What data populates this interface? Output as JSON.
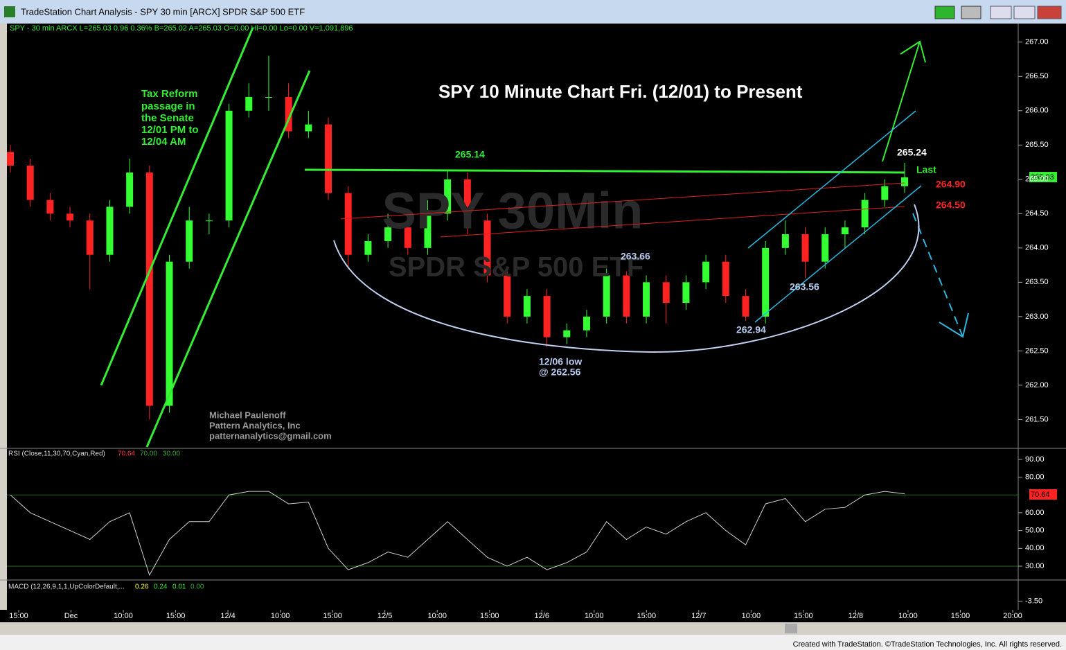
{
  "window_title": "TradeStation Chart Analysis - SPY 30 min [ARCX] SPDR S&P 500 ETF",
  "footer": "Created with TradeStation. ©TradeStation Technologies, Inc. All rights reserved.",
  "chart_data": {
    "type": "candlestick",
    "info_line": "SPY - 30 min  ARCX  L=265.03  0.96  0.36%  B=265.02  A=265.03  O=0.00  Hi=0.00  Lo=0.00  V=1,091,896",
    "title": "SPY 10 Minute Chart Fri. (12/01) to Present",
    "watermark": [
      "SPY 30Min",
      "SPDR S&P 500 ETF"
    ],
    "up_color": "#33ff33",
    "down_color": "#ff2222",
    "candles": {
      "open": [
        265.4,
        265.2,
        264.7,
        264.5,
        264.4,
        263.9,
        264.6,
        265.1,
        261.7,
        263.8,
        264.4,
        264.4,
        266.0,
        266.2,
        266.2,
        265.7,
        265.8,
        264.8,
        263.9,
        264.1,
        264.3,
        264.0,
        264.5,
        265.0,
        264.4,
        263.6,
        263.0,
        263.3,
        262.7,
        262.8,
        263.0,
        263.6,
        263.0,
        263.5,
        263.2,
        263.5,
        263.8,
        263.3,
        263.0,
        264.0,
        264.2,
        263.8,
        264.2,
        264.3,
        264.7,
        264.9
      ],
      "high": [
        265.5,
        265.3,
        264.8,
        264.6,
        264.5,
        264.7,
        265.3,
        265.2,
        263.9,
        264.6,
        264.5,
        266.1,
        266.4,
        266.8,
        266.4,
        266.0,
        265.9,
        264.9,
        264.2,
        264.5,
        264.4,
        264.7,
        265.14,
        265.1,
        264.5,
        263.7,
        263.4,
        263.4,
        262.9,
        263.1,
        263.7,
        263.66,
        263.6,
        263.6,
        263.6,
        263.9,
        263.9,
        263.4,
        264.1,
        264.4,
        264.3,
        264.3,
        264.4,
        264.8,
        265.0,
        265.24
      ],
      "low": [
        265.1,
        264.6,
        264.4,
        264.3,
        263.4,
        263.8,
        264.5,
        261.5,
        261.6,
        263.7,
        264.2,
        264.3,
        265.9,
        266.0,
        265.6,
        265.6,
        264.7,
        263.7,
        263.8,
        264.0,
        263.9,
        263.9,
        264.4,
        264.2,
        263.5,
        262.9,
        262.9,
        262.56,
        262.6,
        262.7,
        262.9,
        262.9,
        262.9,
        262.9,
        263.1,
        263.4,
        263.2,
        262.94,
        262.9,
        263.9,
        263.56,
        263.7,
        264.0,
        264.2,
        264.6,
        264.8
      ],
      "close": [
        265.2,
        264.7,
        264.5,
        264.4,
        263.9,
        264.6,
        265.1,
        261.7,
        263.8,
        264.4,
        264.4,
        266.0,
        266.2,
        266.2,
        265.7,
        265.8,
        264.8,
        263.9,
        264.1,
        264.3,
        264.0,
        264.5,
        265.0,
        264.4,
        263.6,
        263.0,
        263.3,
        262.7,
        262.8,
        263.0,
        263.6,
        263.0,
        263.5,
        263.2,
        263.5,
        263.8,
        263.3,
        263.0,
        264.0,
        264.2,
        263.8,
        264.2,
        264.3,
        264.7,
        264.9,
        265.03
      ]
    },
    "ylim": [
      261.1,
      267.25
    ],
    "yticks": [
      {
        "value": 261.5,
        "label": "261.50"
      },
      {
        "value": 262,
        "label": "262.00"
      },
      {
        "value": 262.5,
        "label": "262.50"
      },
      {
        "value": 263,
        "label": "263.00"
      },
      {
        "value": 263.5,
        "label": "263.50"
      },
      {
        "value": 264,
        "label": "264.00"
      },
      {
        "value": 264.5,
        "label": "264.50"
      },
      {
        "value": 265,
        "label": "265.00"
      },
      {
        "value": 265.5,
        "label": "265.50"
      },
      {
        "value": 266,
        "label": "266.00"
      },
      {
        "value": 266.5,
        "label": "266.50"
      },
      {
        "value": 267,
        "label": "267.00"
      }
    ],
    "resistance": 265.14,
    "x_labels": [
      "15:00",
      "Dec",
      "10:00",
      "15:00",
      "12/4",
      "10:00",
      "15:00",
      "12/5",
      "10:00",
      "15:00",
      "12/6",
      "10:00",
      "15:00",
      "12/7",
      "10:00",
      "15:00",
      "12/8",
      "10:00",
      "15:00",
      "20:00"
    ],
    "annotations": {
      "tax_reform": [
        "Tax Reform",
        "passage in",
        "the Senate",
        "12/01 PM to",
        "12/04 AM"
      ],
      "high_265_14": "265.14",
      "high_265_24": "265.24",
      "last": "Last",
      "level_264_90": "264.90",
      "level_264_50": "264.50",
      "level_263_66": "263.66",
      "level_263_56": "263.56",
      "level_262_94": "262.94",
      "low_note": [
        "12/06 low",
        "@ 262.56"
      ],
      "author": [
        "Michael Paulenoff",
        "Pattern Analytics, Inc",
        "patternanalytics@gmail.com"
      ]
    },
    "rsi": {
      "label": "RSI (Close,11,30,70,Cyan,Red)",
      "legend_values": [
        "70.64",
        "70.00",
        "30.00"
      ],
      "overbought": 70,
      "oversold": 30,
      "values": [
        70,
        60,
        55,
        50,
        45,
        55,
        60,
        25,
        45,
        55,
        55,
        70,
        72,
        72,
        65,
        66,
        40,
        28,
        32,
        38,
        35,
        45,
        55,
        45,
        35,
        30,
        35,
        28,
        32,
        38,
        55,
        45,
        52,
        48,
        55,
        60,
        50,
        42,
        65,
        68,
        55,
        62,
        63,
        70,
        72,
        70.64
      ],
      "ylim": [
        23,
        95
      ],
      "yticks": [
        {
          "value": 30,
          "label": "30.00"
        },
        {
          "value": 40,
          "label": "40.00"
        },
        {
          "value": 50,
          "label": "50.00"
        },
        {
          "value": 60,
          "label": "60.00"
        },
        {
          "value": 80,
          "label": "80.00"
        },
        {
          "value": 90,
          "label": "90.00"
        }
      ]
    },
    "macd": {
      "label": "MACD (12,26,9,1,1,UpColorDefault,...",
      "legend_values": [
        "0.26",
        "0.24",
        "0.01",
        "0.00"
      ],
      "ylim": [
        -5,
        0
      ],
      "yticks": [
        {
          "value": -3.5,
          "label": "-3.50"
        }
      ]
    }
  }
}
